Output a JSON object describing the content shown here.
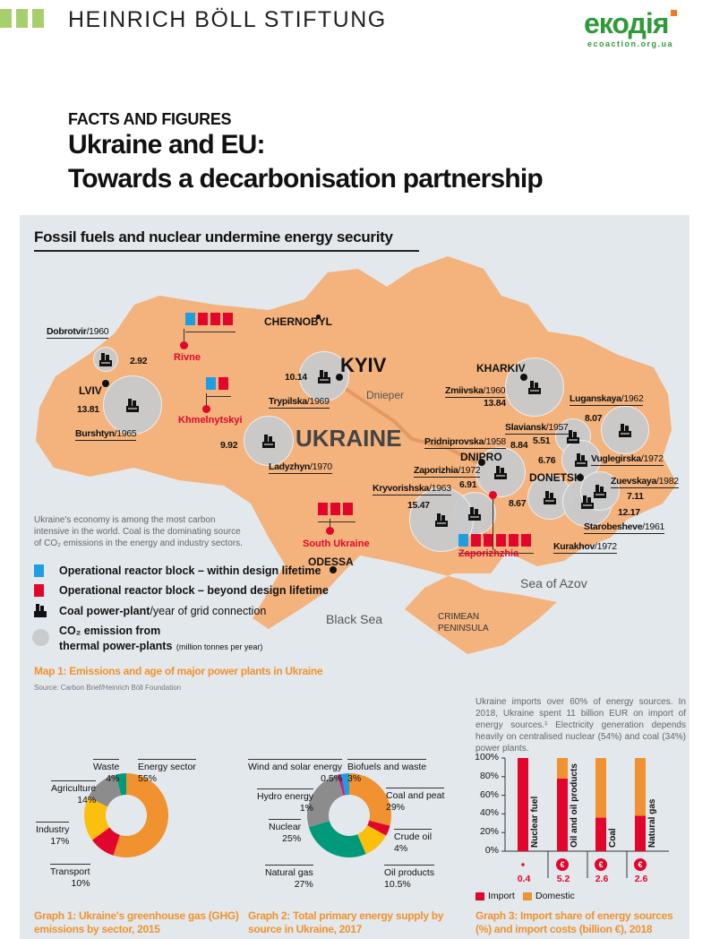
{
  "header": {
    "foundation_name": "HEINRICH BÖLL STIFTUNG",
    "partner_logo": "екодія",
    "partner_url": "ecoaction.org.ua",
    "kicker": "FACTS AND FIGURES",
    "title_line1": "Ukraine and EU:",
    "title_line2": "Towards a decarbonisation partnership"
  },
  "map": {
    "section_title": "Fossil fuels and nuclear undermine energy security",
    "country_label": "UKRAINE",
    "river": "Dnieper",
    "seas": [
      "Sea of Azov",
      "Black Sea"
    ],
    "peninsula": [
      "CRIMEAN",
      "PENINSULA"
    ],
    "cities": [
      "KYIV",
      "CHERNOBYL",
      "KHARKIV",
      "DNIPRO",
      "DONETSK",
      "ODESSA",
      "LVIV"
    ],
    "coal_plants": [
      {
        "name": "Dobrotvir",
        "year": "/1960",
        "co2": "2.92"
      },
      {
        "name": "Burshtyn",
        "year": "/1965",
        "co2": "13.81"
      },
      {
        "name": "Trypilska",
        "year": "/1969",
        "co2": "10.14"
      },
      {
        "name": "Ladyzhyn",
        "year": "/1970",
        "co2": "9.92"
      },
      {
        "name": "Zmiivska",
        "year": "/1960",
        "co2": "13.84"
      },
      {
        "name": "Luganskaya",
        "year": "/1962",
        "co2": "8.07"
      },
      {
        "name": "Slaviansk",
        "year": "/1957",
        "co2": "5.51"
      },
      {
        "name": "Vuglegirska",
        "year": "/1972",
        "co2": "6.76"
      },
      {
        "name": "Pridniprovska",
        "year": "/1958",
        "co2": "8.84"
      },
      {
        "name": "Zaporizhia",
        "year": "/1972",
        "co2": "6.91"
      },
      {
        "name": "Kryvorishska",
        "year": "/1963",
        "co2": "15.47"
      },
      {
        "name": "Kurakhov",
        "year": "/1972",
        "co2": "8.67"
      },
      {
        "name": "Starobesheve",
        "year": "/1961",
        "co2": "12.17"
      },
      {
        "name": "Zuevskaya",
        "year": "/1982",
        "co2": "7.11"
      }
    ],
    "nuclear_plants": [
      {
        "name": "Rivne",
        "blocks": [
          "within",
          "beyond",
          "beyond",
          "beyond"
        ]
      },
      {
        "name": "Khmelnytskyi",
        "blocks": [
          "within",
          "beyond"
        ]
      },
      {
        "name": "South Ukraine",
        "blocks": [
          "beyond",
          "beyond",
          "beyond"
        ]
      },
      {
        "name": "Zaporizhzhia",
        "blocks": [
          "within",
          "beyond",
          "beyond",
          "beyond",
          "beyond",
          "beyond"
        ]
      }
    ],
    "note": "Ukraine's economy is among the most carbon intensive in the world. Coal is the dominating source of CO₂ emissions in the energy and industry sectors.",
    "legend": {
      "within": "Operational reactor block – within design lifetime",
      "beyond": "Operational reactor block – beyond design lifetime",
      "coal_bold": "Coal power-plant",
      "coal_rest": "/year of grid connection",
      "co2_line1": "CO₂ emission from",
      "co2_line2": "thermal power-plants",
      "co2_unit": "(million tonnes per year)"
    },
    "caption": "Map 1: Emissions and age of major power plants in Ukraine",
    "source": "Source: Carbon Brief/Heinrich Böll Foundation"
  },
  "graph3_intro": "Ukraine imports over 60% of energy sources. In 2018, Ukraine spent 11 billion EUR on import of energy sources.¹ Electricity generation depends heavily on centralised nuclear (54%) and coal (34%) power plants.",
  "colors": {
    "orange": "#f0922f",
    "red": "#e2062c",
    "yellow": "#fbbf0e",
    "grey": "#8c8c8c",
    "green": "#009a7a",
    "blue": "#1e9ee0",
    "pink": "#d4127a",
    "purple": "#7b3fa0",
    "map": "#f4b27c",
    "bubble": "#c9cbcd"
  },
  "chart_data": [
    {
      "type": "pie",
      "title": "Graph 1: Ukraine's greenhouse gas (GHG) emissions by sector, 2015",
      "slices": [
        {
          "label": "Energy sector",
          "value": 55,
          "display": "55%",
          "color": "#f0922f"
        },
        {
          "label": "Transport",
          "value": 10,
          "display": "10%",
          "color": "#e2062c"
        },
        {
          "label": "Industry",
          "value": 17,
          "display": "17%",
          "color": "#fbbf0e"
        },
        {
          "label": "Agriculture",
          "value": 14,
          "display": "14%",
          "color": "#8c8c8c"
        },
        {
          "label": "Waste",
          "value": 4,
          "display": "4%",
          "color": "#009a7a"
        }
      ]
    },
    {
      "type": "pie",
      "title": "Graph 2: Total primary energy supply by source in Ukraine, 2017",
      "slices": [
        {
          "label": "Coal and peat",
          "value": 29,
          "display": "29%",
          "color": "#f0922f"
        },
        {
          "label": "Crude oil",
          "value": 4,
          "display": "4%",
          "color": "#e2062c"
        },
        {
          "label": "Oil products",
          "value": 10.5,
          "display": "10.5%",
          "color": "#fbbf0e"
        },
        {
          "label": "Natural gas",
          "value": 27,
          "display": "27%",
          "color": "#009a7a"
        },
        {
          "label": "Nuclear",
          "value": 25,
          "display": "25%",
          "color": "#8c8c8c"
        },
        {
          "label": "Hydro energy",
          "value": 1,
          "display": "1%",
          "color": "#d4127a"
        },
        {
          "label": "Wind and solar energy",
          "value": 0.5,
          "display": "0.5%",
          "color": "#7b3fa0"
        },
        {
          "label": "Biofuels and waste",
          "value": 3,
          "display": "3%",
          "color": "#1e9ee0"
        }
      ]
    },
    {
      "type": "bar",
      "stacked": true,
      "title": "Graph 3: Import share of energy sources (%) and import costs (billion €), 2018",
      "categories": [
        "Nuclear fuel",
        "Oil and oil products",
        "Coal",
        "Natural gas"
      ],
      "ylim": [
        0,
        100
      ],
      "yticks": [
        "0%",
        "20%",
        "40%",
        "60%",
        "80%",
        "100%"
      ],
      "series": [
        {
          "name": "Import",
          "values": [
            100,
            78,
            36,
            38
          ],
          "color": "#e2062c"
        },
        {
          "name": "Domestic",
          "values": [
            0,
            22,
            64,
            62
          ],
          "color": "#f0922f"
        }
      ],
      "import_costs": [
        "0.4",
        "5.2",
        "2.6",
        "2.6"
      ],
      "cost_symbol": "€"
    }
  ]
}
